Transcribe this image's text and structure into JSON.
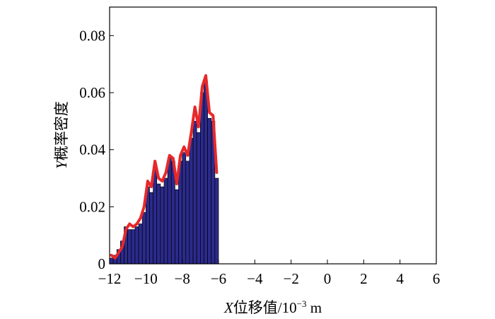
{
  "chart_data": {
    "type": "bar",
    "xlabel_prefix": "X",
    "xlabel_text": "位移值/10",
    "xlabel_exp": "−3",
    "xlabel_unit": " m",
    "ylabel_prefix": "Y",
    "ylabel_text": "概率密度",
    "xlim": [
      -12,
      6
    ],
    "ylim": [
      0,
      0.09
    ],
    "xticks": [
      -12,
      -10,
      -8,
      -6,
      -4,
      -2,
      0,
      2,
      4,
      6
    ],
    "xtick_labels": [
      "−12",
      "−10",
      "−8",
      "−6",
      "−4",
      "−2",
      "0",
      "2",
      "4",
      "6"
    ],
    "yticks": [
      0,
      0.02,
      0.04,
      0.06,
      0.08
    ],
    "ytick_labels": [
      "0",
      "0.02",
      "0.04",
      "0.06",
      "0.08"
    ],
    "grid": false,
    "bar_color": "#2b2a8c",
    "bar_edge_color": "#000000",
    "curve_color": "#e8282a",
    "x": [
      -11.9,
      -11.7,
      -11.5,
      -11.3,
      -11.1,
      -10.9,
      -10.7,
      -10.5,
      -10.3,
      -10.1,
      -9.9,
      -9.7,
      -9.5,
      -9.3,
      -9.1,
      -8.9,
      -8.7,
      -8.5,
      -8.3,
      -8.1,
      -7.9,
      -7.7,
      -7.5,
      -7.3,
      -7.1,
      -6.9,
      -6.7,
      -6.5,
      -6.3,
      -6.1
    ],
    "values": [
      0.002,
      0.003,
      0.005,
      0.008,
      0.013,
      0.012,
      0.012,
      0.013,
      0.014,
      0.018,
      0.027,
      0.025,
      0.034,
      0.028,
      0.027,
      0.03,
      0.037,
      0.036,
      0.026,
      0.036,
      0.039,
      0.036,
      0.044,
      0.05,
      0.046,
      0.06,
      0.064,
      0.051,
      0.05,
      0.03
    ],
    "curve": [
      0.003,
      0.002,
      0.004,
      0.006,
      0.012,
      0.014,
      0.013,
      0.014,
      0.016,
      0.02,
      0.029,
      0.027,
      0.036,
      0.03,
      0.029,
      0.032,
      0.038,
      0.037,
      0.028,
      0.038,
      0.041,
      0.038,
      0.046,
      0.055,
      0.048,
      0.062,
      0.066,
      0.053,
      0.052,
      0.032
    ]
  }
}
